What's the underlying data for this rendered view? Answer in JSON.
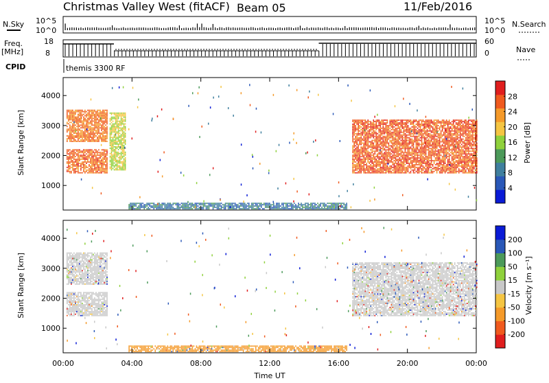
{
  "header": {
    "station": "Christmas Valley West (fitACF)",
    "beam": "Beam 05",
    "date": "11/Feb/2016"
  },
  "strips": {
    "nsky_label": "N.Sky",
    "nsky_ticks": [
      "10^5",
      "10^0"
    ],
    "nsearch_label": "N.Search",
    "nsearch_ticks": [
      "10^5",
      "10^0"
    ],
    "freq_label": "Freq.",
    "freq_unit": "[MHz]",
    "freq_ticks": [
      "18",
      "8"
    ],
    "nave_label": "Nave",
    "nave_ticks": [
      "60",
      "0"
    ],
    "cpid_label": "CPID",
    "cpid_value": "themis 3300 RF"
  },
  "colors": {
    "power_scale": [
      "#0a1bd6",
      "#2a58b8",
      "#3f7f9e",
      "#4c9a5a",
      "#8fd13c",
      "#f5c542",
      "#f59a2a",
      "#f05a1e",
      "#e01e1e"
    ],
    "velocity_scale": [
      "#e01e1e",
      "#f05a1e",
      "#f59a2a",
      "#f5c542",
      "#c8c8c8",
      "#8fd13c",
      "#4c9a5a",
      "#2a58b8",
      "#0a1bd6"
    ]
  },
  "chart_data": [
    {
      "type": "heatmap",
      "title": "",
      "xlabel": "Time UT",
      "ylabel": "Slant Range [km]",
      "x_ticks": [
        "00:00",
        "04:00",
        "08:00",
        "12:00",
        "16:00",
        "20:00",
        "00:00"
      ],
      "xlim_hours": [
        0,
        24
      ],
      "y_ticks": [
        "1000",
        "2000",
        "3000",
        "4000"
      ],
      "ylim": [
        180,
        4600
      ],
      "colorbar": {
        "label": "Power [dB]",
        "ticks": [
          "28",
          "24",
          "20",
          "16",
          "12",
          "8",
          "4"
        ],
        "range": [
          0,
          32
        ]
      },
      "features": [
        {
          "name": "upper band",
          "t0": 0.2,
          "t1": 2.6,
          "r0": 2450,
          "r1": 3500,
          "value": 26
        },
        {
          "name": "lower band",
          "t0": 0.2,
          "t1": 2.6,
          "r0": 1400,
          "r1": 2200,
          "value": 27
        },
        {
          "name": "pre-04 band",
          "t0": 2.7,
          "t1": 3.6,
          "r0": 1500,
          "r1": 3400,
          "value": 18
        },
        {
          "name": "evening band",
          "t0": 16.8,
          "t1": 24.0,
          "r0": 1400,
          "r1": 3200,
          "value": 28
        },
        {
          "name": "near-range",
          "t0": 3.8,
          "t1": 16.5,
          "r0": 200,
          "r1": 400,
          "value": 8
        }
      ]
    },
    {
      "type": "heatmap",
      "title": "",
      "xlabel": "Time UT",
      "ylabel": "Slant Range [km]",
      "x_ticks": [
        "00:00",
        "04:00",
        "08:00",
        "12:00",
        "16:00",
        "20:00",
        "00:00"
      ],
      "xlim_hours": [
        0,
        24
      ],
      "y_ticks": [
        "1000",
        "2000",
        "3000",
        "4000"
      ],
      "ylim": [
        180,
        4600
      ],
      "colorbar": {
        "label": "Velocity [m s⁻¹]",
        "ticks": [
          "200",
          "100",
          "50",
          "15",
          "-15",
          "-50",
          "-100",
          "-200"
        ],
        "range": [
          -250,
          250
        ]
      },
      "features": [
        {
          "name": "upper band",
          "t0": 0.2,
          "t1": 2.6,
          "r0": 2450,
          "r1": 3500,
          "value": 0
        },
        {
          "name": "lower band",
          "t0": 0.2,
          "t1": 2.6,
          "r0": 1400,
          "r1": 2200,
          "value": -5
        },
        {
          "name": "evening band",
          "t0": 16.8,
          "t1": 24.0,
          "r0": 1400,
          "r1": 3200,
          "value": 0
        },
        {
          "name": "near-range",
          "t0": 3.8,
          "t1": 16.5,
          "r0": 200,
          "r1": 400,
          "value": -40
        }
      ]
    }
  ]
}
